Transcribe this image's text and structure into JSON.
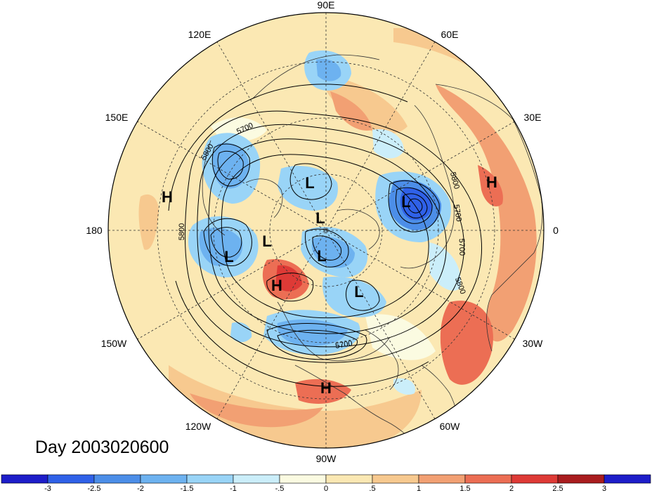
{
  "map": {
    "projection": "north-polar-stereographic",
    "longitude_labels": [
      "90E",
      "60E",
      "30E",
      "0",
      "30W",
      "60W",
      "90W",
      "120W",
      "150W",
      "180",
      "150E",
      "120E"
    ],
    "pressure_systems": [
      "H",
      "H",
      "L",
      "L",
      "L",
      "L",
      "L",
      "L",
      "H",
      "L",
      "H"
    ],
    "contour_labels": [
      "5700",
      "5800",
      "5800",
      "5800",
      "5700",
      "5700",
      "5800",
      "5700"
    ]
  },
  "day_label": "Day 2003020600",
  "colorbar": {
    "tick_labels": [
      "-3",
      "-2.5",
      "-2",
      "-1.5",
      "-1",
      "-.5",
      "0",
      ".5",
      "1",
      "1.5",
      "2",
      "2.5",
      "3"
    ],
    "colors": [
      "#1d1dc9",
      "#2f61e8",
      "#4c8ee8",
      "#6db2f0",
      "#99d4f7",
      "#cbeefa",
      "#fbfbe1",
      "#fbe8b3",
      "#f7c98f",
      "#f2a073",
      "#ec6e54",
      "#de3a36",
      "#a91c1e",
      "#1d1dc9"
    ]
  },
  "colors": {
    "anomaly_positive": "#f2a073",
    "anomaly_negative": "#6db2f0",
    "contour": "#000000",
    "background": "#ffffff"
  }
}
